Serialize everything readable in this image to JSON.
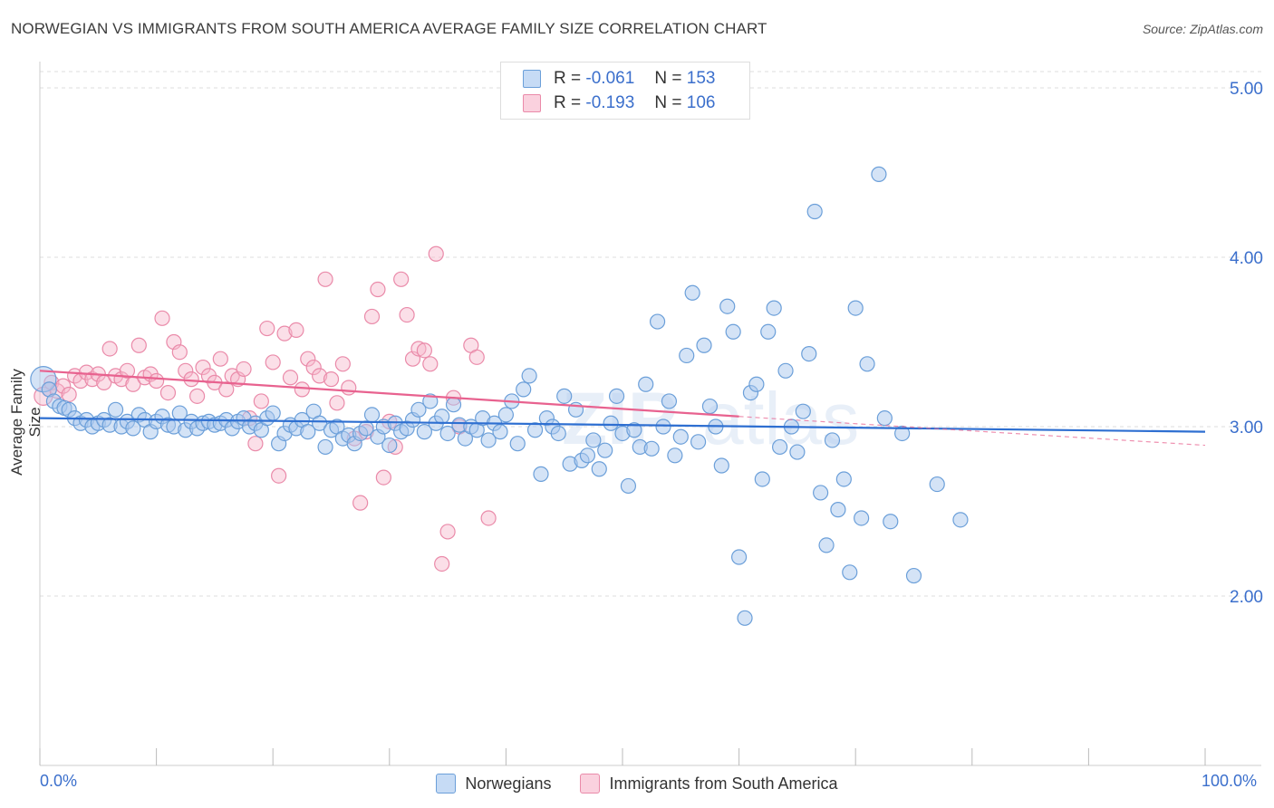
{
  "title": "NORWEGIAN VS IMMIGRANTS FROM SOUTH AMERICA AVERAGE FAMILY SIZE CORRELATION CHART",
  "source": "Source: ZipAtlas.com",
  "legend_top": {
    "rows": [
      {
        "r_label": "R =",
        "r_value": "-0.061",
        "n_label": "N =",
        "n_value": "153"
      },
      {
        "r_label": "R =",
        "r_value": "-0.193",
        "n_label": "N =",
        "n_value": "106"
      }
    ]
  },
  "legend_bottom": {
    "items": [
      "Norwegians",
      "Immigrants from South America"
    ]
  },
  "x_tick_labels": {
    "left": "0.0%",
    "right": "100.0%"
  },
  "colors": {
    "blue_fill": "#a9c8ee",
    "blue_stroke": "#6b9fd9",
    "blue_line": "#2e6fd1",
    "pink_fill": "#f6b8cb",
    "pink_stroke": "#ea8aa9",
    "pink_line": "#e8628f",
    "tick_text": "#3b6fcc",
    "grid": "#dddddd"
  },
  "chart_data": {
    "type": "scatter",
    "ylabel": "Average Family Size",
    "xlabel": "",
    "xlim": [
      0,
      100
    ],
    "ylim": [
      1.0,
      5.2
    ],
    "yticks": [
      2.0,
      3.0,
      4.0,
      5.0
    ],
    "ytick_labels": [
      "2.00",
      "3.00",
      "4.00",
      "5.00"
    ],
    "grid": true,
    "series": [
      {
        "name": "Norwegians",
        "r": -0.061,
        "n": 153,
        "trend": {
          "x": [
            0,
            100
          ],
          "y": [
            3.05,
            2.97
          ]
        },
        "points": [
          [
            0.3,
            3.28
          ],
          [
            0.8,
            3.22
          ],
          [
            1.2,
            3.15
          ],
          [
            1.7,
            3.12
          ],
          [
            2.1,
            3.11
          ],
          [
            2.5,
            3.1
          ],
          [
            3.0,
            3.05
          ],
          [
            3.5,
            3.02
          ],
          [
            4.0,
            3.04
          ],
          [
            4.5,
            3.0
          ],
          [
            5.0,
            3.02
          ],
          [
            5.5,
            3.04
          ],
          [
            6.0,
            3.01
          ],
          [
            6.5,
            3.1
          ],
          [
            7.0,
            3.0
          ],
          [
            7.5,
            3.03
          ],
          [
            8.0,
            2.99
          ],
          [
            8.5,
            3.07
          ],
          [
            9.0,
            3.04
          ],
          [
            9.5,
            2.97
          ],
          [
            10.0,
            3.03
          ],
          [
            10.5,
            3.06
          ],
          [
            11.0,
            3.01
          ],
          [
            11.5,
            3.0
          ],
          [
            12.0,
            3.08
          ],
          [
            12.5,
            2.98
          ],
          [
            13.0,
            3.03
          ],
          [
            13.5,
            2.99
          ],
          [
            14.0,
            3.02
          ],
          [
            14.5,
            3.03
          ],
          [
            15.0,
            3.01
          ],
          [
            15.5,
            3.02
          ],
          [
            16.0,
            3.04
          ],
          [
            16.5,
            2.99
          ],
          [
            17.0,
            3.03
          ],
          [
            17.5,
            3.05
          ],
          [
            18.0,
            3.0
          ],
          [
            18.5,
            3.02
          ],
          [
            19.0,
            2.98
          ],
          [
            19.5,
            3.05
          ],
          [
            20.0,
            3.08
          ],
          [
            20.5,
            2.9
          ],
          [
            21.0,
            2.96
          ],
          [
            21.5,
            3.01
          ],
          [
            22.0,
            2.99
          ],
          [
            22.5,
            3.04
          ],
          [
            23.0,
            2.97
          ],
          [
            23.5,
            3.09
          ],
          [
            24.0,
            3.02
          ],
          [
            24.5,
            2.88
          ],
          [
            25.0,
            2.98
          ],
          [
            25.5,
            3.0
          ],
          [
            26.0,
            2.93
          ],
          [
            26.5,
            2.95
          ],
          [
            27.0,
            2.9
          ],
          [
            27.5,
            2.96
          ],
          [
            28.0,
            2.99
          ],
          [
            28.5,
            3.07
          ],
          [
            29.0,
            2.94
          ],
          [
            29.5,
            3.0
          ],
          [
            30.0,
            2.89
          ],
          [
            30.5,
            3.02
          ],
          [
            31.0,
            2.97
          ],
          [
            31.5,
            2.99
          ],
          [
            32.0,
            3.04
          ],
          [
            32.5,
            3.1
          ],
          [
            33.0,
            2.97
          ],
          [
            33.5,
            3.15
          ],
          [
            34.0,
            3.02
          ],
          [
            34.5,
            3.06
          ],
          [
            35.0,
            2.96
          ],
          [
            35.5,
            3.13
          ],
          [
            36.0,
            3.01
          ],
          [
            36.5,
            2.93
          ],
          [
            37.0,
            3.0
          ],
          [
            37.5,
            2.98
          ],
          [
            38.0,
            3.05
          ],
          [
            38.5,
            2.92
          ],
          [
            39.0,
            3.02
          ],
          [
            39.5,
            2.97
          ],
          [
            40.0,
            3.07
          ],
          [
            40.5,
            3.15
          ],
          [
            41.0,
            2.9
          ],
          [
            41.5,
            3.22
          ],
          [
            42.0,
            3.3
          ],
          [
            42.5,
            2.98
          ],
          [
            43.0,
            2.72
          ],
          [
            43.5,
            3.05
          ],
          [
            44.0,
            3.0
          ],
          [
            44.5,
            2.96
          ],
          [
            45.0,
            3.18
          ],
          [
            45.5,
            2.78
          ],
          [
            46.0,
            3.1
          ],
          [
            46.5,
            2.8
          ],
          [
            47.0,
            2.83
          ],
          [
            47.5,
            2.92
          ],
          [
            48.0,
            2.75
          ],
          [
            48.5,
            2.86
          ],
          [
            49.0,
            3.02
          ],
          [
            49.5,
            3.18
          ],
          [
            50.0,
            2.96
          ],
          [
            50.5,
            2.65
          ],
          [
            51.0,
            2.98
          ],
          [
            51.5,
            2.88
          ],
          [
            52.0,
            3.25
          ],
          [
            52.5,
            2.87
          ],
          [
            53.0,
            3.62
          ],
          [
            53.5,
            3.0
          ],
          [
            54.0,
            3.15
          ],
          [
            54.5,
            2.83
          ],
          [
            55.0,
            2.94
          ],
          [
            55.5,
            3.42
          ],
          [
            56.0,
            3.79
          ],
          [
            56.5,
            2.91
          ],
          [
            57.0,
            3.48
          ],
          [
            57.5,
            3.12
          ],
          [
            58.0,
            3.0
          ],
          [
            58.5,
            2.77
          ],
          [
            59.0,
            3.71
          ],
          [
            59.5,
            3.56
          ],
          [
            60.0,
            2.23
          ],
          [
            60.5,
            1.87
          ],
          [
            61.0,
            3.2
          ],
          [
            61.5,
            3.25
          ],
          [
            62.0,
            2.69
          ],
          [
            62.5,
            3.56
          ],
          [
            63.0,
            3.7
          ],
          [
            63.5,
            2.88
          ],
          [
            64.0,
            3.33
          ],
          [
            64.5,
            3.0
          ],
          [
            65.0,
            2.85
          ],
          [
            65.5,
            3.09
          ],
          [
            66.0,
            3.43
          ],
          [
            66.5,
            4.27
          ],
          [
            67.0,
            2.61
          ],
          [
            67.5,
            2.3
          ],
          [
            68.0,
            2.92
          ],
          [
            68.5,
            2.51
          ],
          [
            69.0,
            2.69
          ],
          [
            69.5,
            2.14
          ],
          [
            70.0,
            3.7
          ],
          [
            70.5,
            2.46
          ],
          [
            71.0,
            3.37
          ],
          [
            72.0,
            4.49
          ],
          [
            72.5,
            3.05
          ],
          [
            73.0,
            2.44
          ],
          [
            74.0,
            2.96
          ],
          [
            75.0,
            2.12
          ],
          [
            77.0,
            2.66
          ],
          [
            79.0,
            2.45
          ]
        ]
      },
      {
        "name": "Immigrants from South America",
        "r": -0.193,
        "n": 106,
        "trend": {
          "x": [
            0,
            60
          ],
          "y": [
            3.33,
            3.06
          ]
        },
        "trend_ext": {
          "x": [
            60,
            100
          ],
          "y": [
            3.06,
            2.89
          ]
        },
        "points": [
          [
            0.3,
            3.18
          ],
          [
            0.8,
            3.22
          ],
          [
            1.0,
            3.26
          ],
          [
            1.5,
            3.21
          ],
          [
            2.0,
            3.24
          ],
          [
            2.5,
            3.19
          ],
          [
            3.0,
            3.3
          ],
          [
            3.5,
            3.27
          ],
          [
            4.0,
            3.32
          ],
          [
            4.5,
            3.28
          ],
          [
            5.0,
            3.31
          ],
          [
            5.5,
            3.26
          ],
          [
            6.0,
            3.46
          ],
          [
            6.5,
            3.3
          ],
          [
            7.0,
            3.28
          ],
          [
            7.5,
            3.33
          ],
          [
            8.0,
            3.25
          ],
          [
            8.5,
            3.48
          ],
          [
            9.0,
            3.29
          ],
          [
            9.5,
            3.31
          ],
          [
            10.0,
            3.27
          ],
          [
            10.5,
            3.64
          ],
          [
            11.0,
            3.2
          ],
          [
            11.5,
            3.5
          ],
          [
            12.0,
            3.44
          ],
          [
            12.5,
            3.33
          ],
          [
            13.0,
            3.28
          ],
          [
            13.5,
            3.18
          ],
          [
            14.0,
            3.35
          ],
          [
            14.5,
            3.3
          ],
          [
            15.0,
            3.26
          ],
          [
            15.5,
            3.4
          ],
          [
            16.0,
            3.22
          ],
          [
            16.5,
            3.3
          ],
          [
            17.0,
            3.28
          ],
          [
            17.5,
            3.34
          ],
          [
            18.0,
            3.05
          ],
          [
            18.5,
            2.9
          ],
          [
            19.0,
            3.15
          ],
          [
            19.5,
            3.58
          ],
          [
            20.0,
            3.38
          ],
          [
            20.5,
            2.71
          ],
          [
            21.0,
            3.55
          ],
          [
            21.5,
            3.29
          ],
          [
            22.0,
            3.57
          ],
          [
            22.5,
            3.22
          ],
          [
            23.0,
            3.4
          ],
          [
            23.5,
            3.35
          ],
          [
            24.0,
            3.3
          ],
          [
            24.5,
            3.87
          ],
          [
            25.0,
            3.28
          ],
          [
            25.5,
            3.14
          ],
          [
            26.0,
            3.37
          ],
          [
            26.5,
            3.23
          ],
          [
            27.0,
            2.93
          ],
          [
            27.5,
            2.55
          ],
          [
            28.0,
            2.97
          ],
          [
            28.5,
            3.65
          ],
          [
            29.0,
            3.81
          ],
          [
            29.5,
            2.7
          ],
          [
            30.0,
            3.03
          ],
          [
            30.5,
            2.88
          ],
          [
            31.0,
            3.87
          ],
          [
            31.5,
            3.66
          ],
          [
            32.0,
            3.4
          ],
          [
            32.5,
            3.46
          ],
          [
            33.0,
            3.45
          ],
          [
            33.5,
            3.37
          ],
          [
            34.0,
            4.02
          ],
          [
            34.5,
            2.19
          ],
          [
            35.0,
            2.38
          ],
          [
            35.5,
            3.17
          ],
          [
            36.0,
            3.0
          ],
          [
            37.0,
            3.48
          ],
          [
            37.5,
            3.41
          ],
          [
            38.5,
            2.46
          ]
        ]
      }
    ]
  }
}
